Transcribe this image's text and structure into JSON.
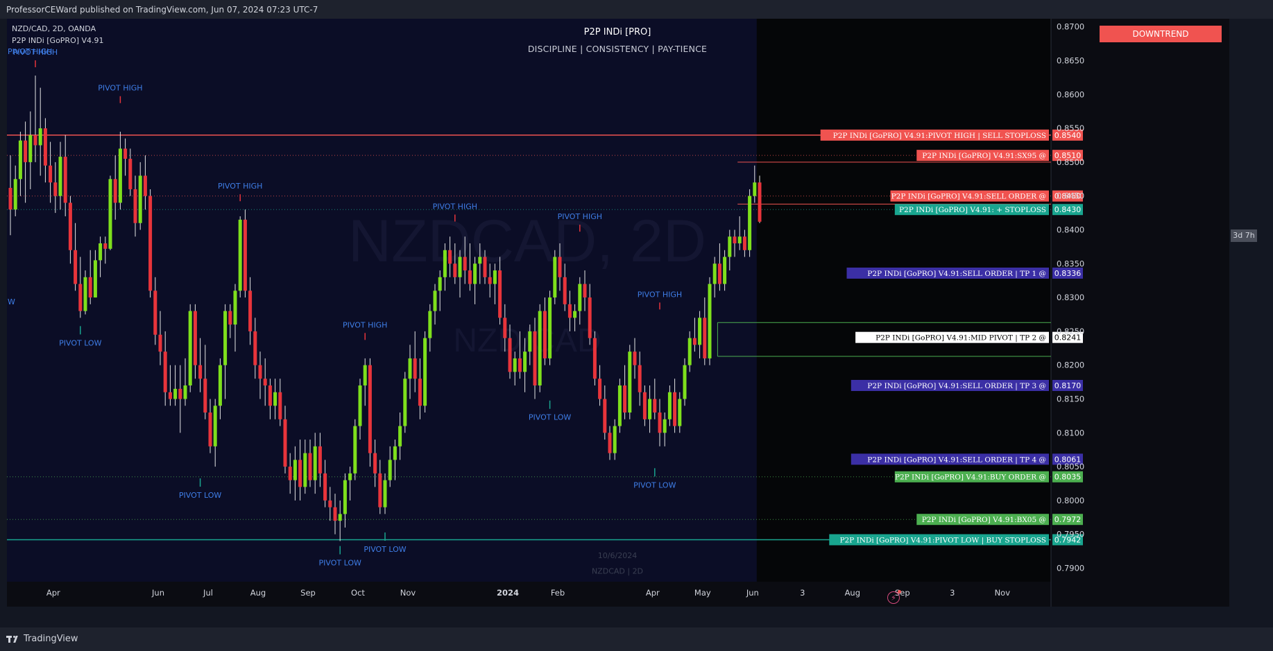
{
  "header": {
    "published": "ProfessorCEWard published on TradingView.com, Jun 07, 2024 07:23 UTC-7",
    "symbol_line": "NZD/CAD, 2D, OANDA",
    "indicator_line": "P2P INDi [GoPRO] V4.91",
    "title": "P2P INDi [PRO]",
    "subtitle": "DISCIPLINE   |   CONSISTENCY   |   PAY-TIENCE",
    "trend_badge": "DOWNTREND",
    "timer": "3d 7h"
  },
  "footer": {
    "brand": "TradingView"
  },
  "colors": {
    "background": "#0b0d26",
    "future_background": "#050608",
    "bull": "#7ee01c",
    "bear": "#e8343b",
    "pivot_text": "#3f7ee8",
    "axis_text": "#d1d4dc",
    "red_level": "#f05350",
    "teal_level": "#19a58f",
    "purple_level": "#3b2fa5",
    "green_level": "#4caf50",
    "white_level": "#ffffff"
  },
  "chart_data": {
    "type": "candlestick",
    "symbol": "NZD/CAD",
    "timeframe": "2D",
    "exchange": "OANDA",
    "watermark": {
      "main": "NZDCAD, 2D",
      "secondary": "NZD/CAD"
    },
    "ylim": [
      0.788,
      0.8712
    ],
    "y_ticks": [
      "0.8700",
      "0.8650",
      "0.8600",
      "0.8550",
      "0.8500",
      "0.8450",
      "0.8400",
      "0.8350",
      "0.8300",
      "0.8250",
      "0.8200",
      "0.8150",
      "0.8100",
      "0.8050",
      "0.8000",
      "0.7950",
      "0.7900"
    ],
    "x_ticks": [
      "Apr",
      "Jun",
      "Jul",
      "Aug",
      "Sep",
      "Oct",
      "Nov",
      "2024",
      "Feb",
      "Apr",
      "May",
      "Jun",
      "3",
      "Aug",
      "Sep",
      "3",
      "Nov"
    ],
    "x_ticks_positions_index": [
      9,
      30,
      40,
      50,
      60,
      70,
      80,
      100,
      110,
      129,
      139,
      149,
      159,
      169,
      179,
      189,
      199
    ],
    "last_bar_index": 149,
    "date_overlay": {
      "line1": "10/6/2024",
      "line2": "NZDCAD | 2D"
    },
    "candles": [
      [
        0.8462,
        0.851,
        0.8392,
        0.843
      ],
      [
        0.843,
        0.8495,
        0.842,
        0.8475
      ],
      [
        0.8475,
        0.8545,
        0.845,
        0.8532
      ],
      [
        0.8532,
        0.856,
        0.844,
        0.85
      ],
      [
        0.85,
        0.8575,
        0.846,
        0.854
      ],
      [
        0.854,
        0.8628,
        0.85,
        0.8525
      ],
      [
        0.8525,
        0.861,
        0.848,
        0.855
      ],
      [
        0.855,
        0.8565,
        0.847,
        0.8495
      ],
      [
        0.8495,
        0.853,
        0.844,
        0.847
      ],
      [
        0.847,
        0.85,
        0.8425,
        0.845
      ],
      [
        0.845,
        0.853,
        0.843,
        0.8508
      ],
      [
        0.8508,
        0.854,
        0.842,
        0.844
      ],
      [
        0.844,
        0.845,
        0.835,
        0.837
      ],
      [
        0.837,
        0.841,
        0.831,
        0.832
      ],
      [
        0.832,
        0.836,
        0.827,
        0.828
      ],
      [
        0.828,
        0.834,
        0.8275,
        0.833
      ],
      [
        0.833,
        0.837,
        0.829,
        0.83
      ],
      [
        0.83,
        0.837,
        0.83,
        0.8355
      ],
      [
        0.8355,
        0.839,
        0.833,
        0.838
      ],
      [
        0.838,
        0.839,
        0.835,
        0.8372
      ],
      [
        0.8372,
        0.848,
        0.837,
        0.8475
      ],
      [
        0.8475,
        0.851,
        0.8415,
        0.844
      ],
      [
        0.844,
        0.8545,
        0.843,
        0.852
      ],
      [
        0.852,
        0.8535,
        0.848,
        0.8505
      ],
      [
        0.8505,
        0.852,
        0.845,
        0.846
      ],
      [
        0.846,
        0.848,
        0.839,
        0.841
      ],
      [
        0.841,
        0.85,
        0.84,
        0.848
      ],
      [
        0.848,
        0.851,
        0.843,
        0.845
      ],
      [
        0.845,
        0.846,
        0.83,
        0.831
      ],
      [
        0.831,
        0.833,
        0.823,
        0.8245
      ],
      [
        0.8245,
        0.828,
        0.82,
        0.822
      ],
      [
        0.822,
        0.825,
        0.814,
        0.816
      ],
      [
        0.816,
        0.82,
        0.814,
        0.815
      ],
      [
        0.815,
        0.82,
        0.814,
        0.8165
      ],
      [
        0.8165,
        0.82,
        0.81,
        0.815
      ],
      [
        0.815,
        0.821,
        0.814,
        0.817
      ],
      [
        0.817,
        0.829,
        0.816,
        0.828
      ],
      [
        0.828,
        0.829,
        0.818,
        0.82
      ],
      [
        0.82,
        0.824,
        0.816,
        0.818
      ],
      [
        0.818,
        0.823,
        0.812,
        0.813
      ],
      [
        0.813,
        0.815,
        0.807,
        0.808
      ],
      [
        0.808,
        0.815,
        0.805,
        0.814
      ],
      [
        0.814,
        0.821,
        0.812,
        0.82
      ],
      [
        0.82,
        0.829,
        0.815,
        0.828
      ],
      [
        0.828,
        0.829,
        0.824,
        0.826
      ],
      [
        0.826,
        0.832,
        0.822,
        0.831
      ],
      [
        0.831,
        0.842,
        0.83,
        0.8415
      ],
      [
        0.8415,
        0.843,
        0.83,
        0.831
      ],
      [
        0.831,
        0.833,
        0.823,
        0.825
      ],
      [
        0.825,
        0.827,
        0.818,
        0.82
      ],
      [
        0.82,
        0.822,
        0.815,
        0.818
      ],
      [
        0.818,
        0.821,
        0.814,
        0.817
      ],
      [
        0.817,
        0.818,
        0.812,
        0.814
      ],
      [
        0.814,
        0.818,
        0.812,
        0.816
      ],
      [
        0.816,
        0.818,
        0.811,
        0.812
      ],
      [
        0.812,
        0.814,
        0.804,
        0.805
      ],
      [
        0.805,
        0.807,
        0.801,
        0.803
      ],
      [
        0.803,
        0.808,
        0.8,
        0.806
      ],
      [
        0.806,
        0.809,
        0.8,
        0.802
      ],
      [
        0.802,
        0.809,
        0.801,
        0.807
      ],
      [
        0.807,
        0.809,
        0.802,
        0.803
      ],
      [
        0.803,
        0.81,
        0.801,
        0.808
      ],
      [
        0.808,
        0.81,
        0.802,
        0.804
      ],
      [
        0.804,
        0.806,
        0.799,
        0.8
      ],
      [
        0.8,
        0.802,
        0.797,
        0.799
      ],
      [
        0.799,
        0.801,
        0.795,
        0.797
      ],
      [
        0.797,
        0.8,
        0.794,
        0.798
      ],
      [
        0.798,
        0.804,
        0.796,
        0.803
      ],
      [
        0.803,
        0.805,
        0.8,
        0.804
      ],
      [
        0.804,
        0.812,
        0.803,
        0.811
      ],
      [
        0.811,
        0.818,
        0.809,
        0.817
      ],
      [
        0.817,
        0.821,
        0.814,
        0.82
      ],
      [
        0.82,
        0.821,
        0.805,
        0.807
      ],
      [
        0.807,
        0.809,
        0.802,
        0.804
      ],
      [
        0.804,
        0.806,
        0.798,
        0.799
      ],
      [
        0.799,
        0.804,
        0.798,
        0.803
      ],
      [
        0.803,
        0.808,
        0.802,
        0.806
      ],
      [
        0.806,
        0.809,
        0.803,
        0.808
      ],
      [
        0.808,
        0.813,
        0.806,
        0.811
      ],
      [
        0.811,
        0.819,
        0.81,
        0.818
      ],
      [
        0.818,
        0.823,
        0.815,
        0.821
      ],
      [
        0.821,
        0.825,
        0.816,
        0.818
      ],
      [
        0.818,
        0.821,
        0.812,
        0.814
      ],
      [
        0.814,
        0.825,
        0.813,
        0.824
      ],
      [
        0.824,
        0.829,
        0.822,
        0.828
      ],
      [
        0.828,
        0.832,
        0.826,
        0.831
      ],
      [
        0.831,
        0.834,
        0.828,
        0.833
      ],
      [
        0.833,
        0.838,
        0.831,
        0.837
      ],
      [
        0.837,
        0.839,
        0.833,
        0.835
      ],
      [
        0.835,
        0.838,
        0.832,
        0.833
      ],
      [
        0.833,
        0.837,
        0.83,
        0.836
      ],
      [
        0.836,
        0.839,
        0.832,
        0.834
      ],
      [
        0.834,
        0.838,
        0.831,
        0.832
      ],
      [
        0.832,
        0.836,
        0.829,
        0.835
      ],
      [
        0.835,
        0.838,
        0.832,
        0.836
      ],
      [
        0.836,
        0.837,
        0.832,
        0.833
      ],
      [
        0.833,
        0.835,
        0.83,
        0.832
      ],
      [
        0.832,
        0.835,
        0.829,
        0.834
      ],
      [
        0.834,
        0.836,
        0.826,
        0.827
      ],
      [
        0.827,
        0.829,
        0.822,
        0.824
      ],
      [
        0.824,
        0.826,
        0.818,
        0.819
      ],
      [
        0.819,
        0.822,
        0.817,
        0.821
      ],
      [
        0.821,
        0.825,
        0.818,
        0.819
      ],
      [
        0.819,
        0.824,
        0.816,
        0.822
      ],
      [
        0.822,
        0.826,
        0.82,
        0.825
      ],
      [
        0.825,
        0.827,
        0.815,
        0.817
      ],
      [
        0.817,
        0.829,
        0.816,
        0.828
      ],
      [
        0.828,
        0.83,
        0.82,
        0.821
      ],
      [
        0.821,
        0.831,
        0.82,
        0.83
      ],
      [
        0.83,
        0.837,
        0.829,
        0.836
      ],
      [
        0.836,
        0.838,
        0.831,
        0.833
      ],
      [
        0.833,
        0.835,
        0.828,
        0.829
      ],
      [
        0.829,
        0.831,
        0.825,
        0.827
      ],
      [
        0.827,
        0.829,
        0.825,
        0.828
      ],
      [
        0.828,
        0.833,
        0.826,
        0.832
      ],
      [
        0.832,
        0.834,
        0.828,
        0.83
      ],
      [
        0.83,
        0.832,
        0.823,
        0.824
      ],
      [
        0.824,
        0.825,
        0.817,
        0.818
      ],
      [
        0.818,
        0.82,
        0.814,
        0.815
      ],
      [
        0.815,
        0.817,
        0.809,
        0.81
      ],
      [
        0.81,
        0.811,
        0.806,
        0.807
      ],
      [
        0.807,
        0.812,
        0.806,
        0.811
      ],
      [
        0.811,
        0.818,
        0.81,
        0.817
      ],
      [
        0.817,
        0.82,
        0.812,
        0.813
      ],
      [
        0.813,
        0.823,
        0.812,
        0.822
      ],
      [
        0.822,
        0.824,
        0.818,
        0.82
      ],
      [
        0.82,
        0.822,
        0.814,
        0.816
      ],
      [
        0.816,
        0.817,
        0.811,
        0.812
      ],
      [
        0.812,
        0.817,
        0.81,
        0.815
      ],
      [
        0.815,
        0.818,
        0.812,
        0.813
      ],
      [
        0.813,
        0.815,
        0.808,
        0.81
      ],
      [
        0.81,
        0.813,
        0.808,
        0.812
      ],
      [
        0.812,
        0.817,
        0.811,
        0.816
      ],
      [
        0.816,
        0.818,
        0.81,
        0.811
      ],
      [
        0.811,
        0.816,
        0.81,
        0.815
      ],
      [
        0.815,
        0.821,
        0.814,
        0.82
      ],
      [
        0.82,
        0.825,
        0.819,
        0.824
      ],
      [
        0.824,
        0.827,
        0.822,
        0.823
      ],
      [
        0.823,
        0.828,
        0.821,
        0.827
      ],
      [
        0.827,
        0.83,
        0.82,
        0.821
      ],
      [
        0.821,
        0.833,
        0.82,
        0.832
      ],
      [
        0.832,
        0.836,
        0.83,
        0.835
      ],
      [
        0.835,
        0.838,
        0.831,
        0.832
      ],
      [
        0.832,
        0.837,
        0.831,
        0.836
      ],
      [
        0.836,
        0.84,
        0.834,
        0.839
      ],
      [
        0.839,
        0.84,
        0.836,
        0.838
      ],
      [
        0.838,
        0.842,
        0.837,
        0.839
      ],
      [
        0.839,
        0.84,
        0.836,
        0.837
      ],
      [
        0.837,
        0.846,
        0.836,
        0.845
      ],
      [
        0.845,
        0.8495,
        0.844,
        0.847
      ],
      [
        0.847,
        0.848,
        0.841,
        0.8412
      ]
    ],
    "horizontal_levels": [
      {
        "price": 0.854,
        "label": "P2P INDi [GoPRO] V4.91:PIVOT HIGH  |  SELL STOPLOSS",
        "value": "0.8540",
        "color": "#f05350",
        "style": "solid"
      },
      {
        "price": 0.851,
        "label": "P2P INDi [GoPRO] V4.91:SX95 @",
        "value": "0.8510",
        "color": "#f05350",
        "style": "dotted"
      },
      {
        "price": 0.845,
        "label": "P2P INDi [GoPRO] V4.91:SELL ORDER @",
        "value": "0.8450",
        "color": "#f05350",
        "style": "dotted"
      },
      {
        "price": 0.843,
        "label": "P2P INDi [GoPRO] V4.91: + STOPLOSS",
        "value": "0.8430",
        "color": "#19a58f",
        "style": "dotted"
      },
      {
        "price": 0.8336,
        "label": "P2P INDi [GoPRO] V4.91:SELL ORDER  |  TP 1  @",
        "value": "0.8336",
        "color": "#3b2fa5",
        "style": "none"
      },
      {
        "price": 0.8241,
        "label": "P2P INDi [GoPRO] V4.91:MID PIVOT  |  TP 2 @",
        "value": "0.8241",
        "color": "#ffffff",
        "style": "none"
      },
      {
        "price": 0.817,
        "label": "P2P INDi [GoPRO] V4.91:SELL ORDER  |  TP 3 @",
        "value": "0.8170",
        "color": "#3b2fa5",
        "style": "none"
      },
      {
        "price": 0.8061,
        "label": "P2P INDi [GoPRO] V4.91:SELL ORDER  |  TP 4 @",
        "value": "0.8061",
        "color": "#3b2fa5",
        "style": "none"
      },
      {
        "price": 0.8035,
        "label": "P2P INDi [GoPRO] V4.91:BUY ORDER @",
        "value": "0.8035",
        "color": "#4caf50",
        "style": "dotted"
      },
      {
        "price": 0.7972,
        "label": "P2P INDi [GoPRO] V4.91:BX05 @",
        "value": "0.7972",
        "color": "#4caf50",
        "style": "dotted"
      },
      {
        "price": 0.7942,
        "label": "P2P INDi [GoPRO] V4.91:PIVOT LOW  |  BUY STOPLOSS",
        "value": "0.7942",
        "color": "#19a58f",
        "style": "solid"
      }
    ],
    "pivots": [
      {
        "type": "high",
        "label": "PIVOT HIGH",
        "index": 5,
        "price": 0.8628
      },
      {
        "type": "low",
        "label": "PIVOT LOW",
        "index": 14,
        "price": 0.827
      },
      {
        "type": "high",
        "label": "PIVOT HIGH",
        "index": 22,
        "price": 0.8575
      },
      {
        "type": "high",
        "label": "PIVOT HIGH",
        "index": 46,
        "price": 0.843
      },
      {
        "type": "low",
        "label": "PIVOT LOW",
        "index": 38,
        "price": 0.8045
      },
      {
        "type": "high",
        "label": "PIVOT HIGH",
        "index": 71,
        "price": 0.8225
      },
      {
        "type": "low",
        "label": "PIVOT LOW",
        "index": 66,
        "price": 0.7945
      },
      {
        "type": "low",
        "label": "PIVOT LOW",
        "index": 75,
        "price": 0.7965
      },
      {
        "type": "high",
        "label": "PIVOT HIGH",
        "index": 89,
        "price": 0.84
      },
      {
        "type": "low",
        "label": "PIVOT LOW",
        "index": 108,
        "price": 0.816
      },
      {
        "type": "high",
        "label": "PIVOT HIGH",
        "index": 114,
        "price": 0.8385
      },
      {
        "type": "high",
        "label": "PIVOT HIGH",
        "index": 130,
        "price": 0.827
      },
      {
        "type": "low",
        "label": "PIVOT LOW",
        "index": 129,
        "price": 0.806
      }
    ],
    "left_edge_labels": [
      {
        "text": "PIVOT HIGH",
        "price": 0.866
      },
      {
        "text": "W",
        "price": 0.829
      }
    ],
    "mid_pivot_zone": {
      "top": 0.8263,
      "bottom": 0.8213,
      "start_index": 142
    },
    "sell_zone": {
      "top": 0.85,
      "bottom": 0.8438,
      "start_index": 146
    }
  }
}
